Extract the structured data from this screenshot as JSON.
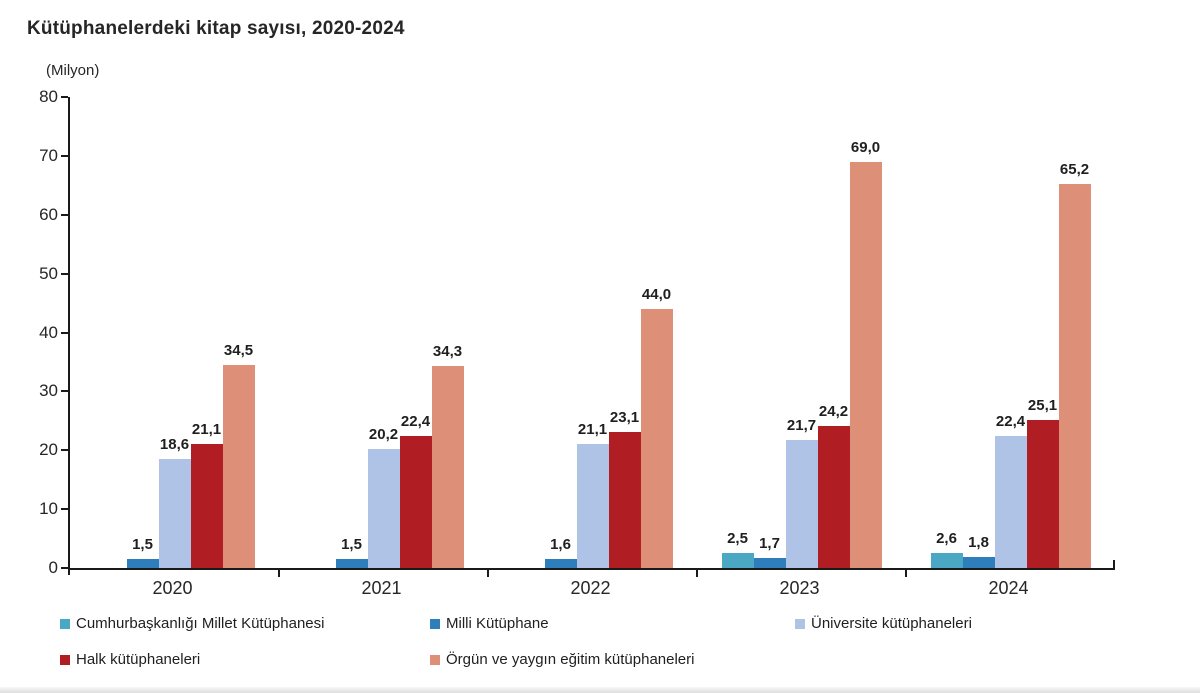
{
  "header": {
    "title": "Kütüphanelerdeki kitap sayısı, 2020-2024"
  },
  "chart_data": {
    "type": "bar",
    "title": "Kütüphanelerdeki kitap sayısı, 2020-2024",
    "subtitle": "",
    "xlabel": "",
    "ylabel": "(Milyon)",
    "categories": [
      "2020",
      "2021",
      "2022",
      "2023",
      "2024"
    ],
    "series": [
      {
        "name": "Cumhurbaşkanlığı Millet Kütüphanesi",
        "color": "#4AA8C4",
        "values": [
          null,
          null,
          null,
          2.5,
          2.6
        ],
        "labels": [
          "",
          "",
          "",
          "2,5",
          "2,6"
        ]
      },
      {
        "name": "Milli Kütüphane",
        "color": "#2D7EBB",
        "values": [
          1.5,
          1.5,
          1.6,
          1.7,
          1.8
        ],
        "labels": [
          "1,5",
          "1,5",
          "1,6",
          "1,7",
          "1,8"
        ]
      },
      {
        "name": "Üniversite kütüphaneleri",
        "color": "#AEC3E6",
        "values": [
          18.6,
          20.2,
          21.1,
          21.7,
          22.4
        ],
        "labels": [
          "18,6",
          "20,2",
          "21,1",
          "21,7",
          "22,4"
        ]
      },
      {
        "name": "Halk kütüphaneleri",
        "color": "#B01E23",
        "values": [
          21.1,
          22.4,
          23.1,
          24.2,
          25.1
        ],
        "labels": [
          "21,1",
          "22,4",
          "23,1",
          "24,2",
          "25,1"
        ]
      },
      {
        "name": "Örgün ve yaygın eğitim kütüphaneleri",
        "color": "#DE8F77",
        "values": [
          34.5,
          34.3,
          44.0,
          69.0,
          65.2
        ],
        "labels": [
          "34,5",
          "34,3",
          "44,0",
          "69,0",
          "65,2"
        ]
      }
    ],
    "ylim": [
      0,
      80
    ],
    "yticks": [
      0,
      10,
      20,
      30,
      40,
      50,
      60,
      70,
      80
    ],
    "grid": false,
    "legend_position": "bottom"
  },
  "colors": {
    "axis": "#1a1a1a",
    "text": "#262626",
    "background": "#ffffff"
  }
}
